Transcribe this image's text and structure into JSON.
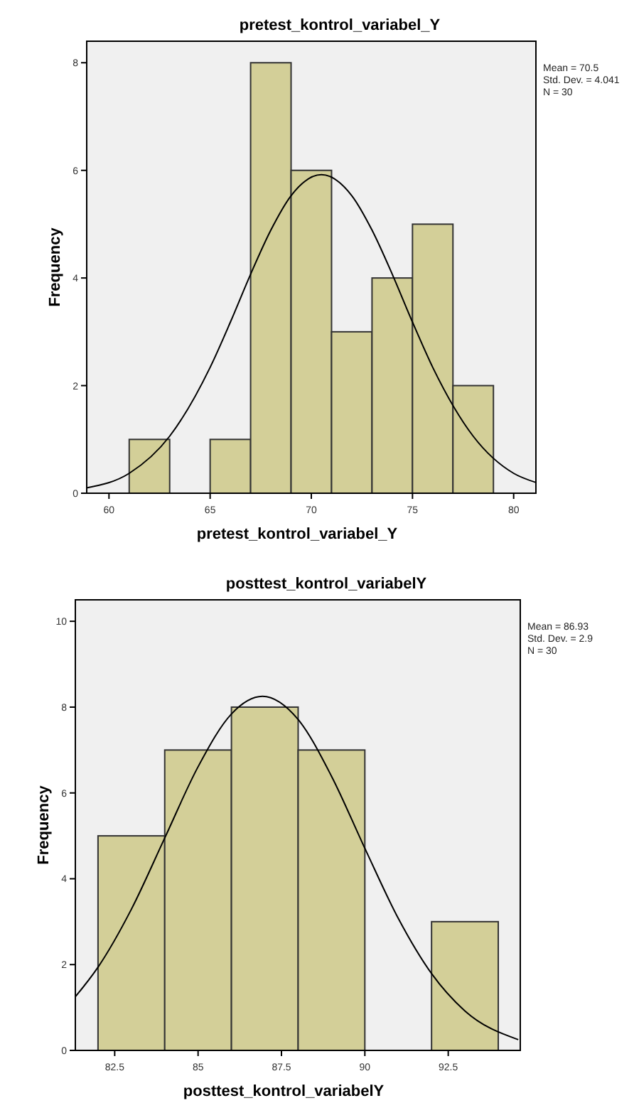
{
  "chart_data": [
    {
      "type": "histogram",
      "title": "pretest_kontrol_variabel_Y",
      "xlabel": "pretest_kontrol_variabel_Y",
      "ylabel": "Frequency",
      "bins": [
        61,
        63,
        65,
        67,
        69,
        71,
        73,
        75,
        77,
        79
      ],
      "values": [
        1,
        0,
        1,
        8,
        6,
        3,
        4,
        5,
        2
      ],
      "color": "#d3cf98",
      "xlim": [
        58.9,
        81.1
      ],
      "xticks": [
        60,
        65,
        70,
        75,
        80
      ],
      "ylim": [
        0,
        8.4
      ],
      "yticks": [
        0,
        2,
        4,
        6,
        8
      ],
      "grid": false,
      "annotations": [
        "Mean = 70.5",
        "Std. Dev. = 4.041",
        "N = 30"
      ],
      "series": [
        {
          "type": "line",
          "color": "#000000",
          "x": [
            58.9,
            61,
            63,
            65,
            66,
            67,
            68,
            69,
            70.5,
            72,
            73,
            74,
            75,
            76,
            78,
            80,
            81.1
          ],
          "values": [
            0.1,
            0.37,
            1.06,
            2.34,
            3.18,
            4.07,
            4.89,
            5.53,
            5.92,
            5.53,
            4.89,
            4.07,
            3.18,
            2.34,
            1.06,
            0.37,
            0.2
          ]
        }
      ]
    },
    {
      "type": "histogram",
      "title": "posttest_kontrol_variabelY",
      "xlabel": "posttest_kontrol_variabelY",
      "ylabel": "Frequency",
      "bins": [
        82,
        84,
        86,
        88,
        90,
        92,
        94
      ],
      "values": [
        5,
        7,
        8,
        7,
        0,
        3
      ],
      "color": "#d3cf98",
      "xlim": [
        81.32,
        94.66
      ],
      "xticks": [
        82.5,
        85,
        87.5,
        90,
        92.5
      ],
      "ylim": [
        0,
        10.5
      ],
      "yticks": [
        0,
        2,
        4,
        6,
        8,
        10
      ],
      "grid": false,
      "annotations": [
        "Mean = 86.93",
        "Std. Dev. = 2.9",
        "N = 30"
      ],
      "series": [
        {
          "type": "line",
          "color": "#000000",
          "x": [
            81.32,
            82,
            83,
            84,
            85,
            86,
            86.93,
            88,
            89,
            90,
            91,
            92,
            93,
            94.6
          ],
          "values": [
            1.25,
            1.94,
            3.29,
            4.95,
            6.61,
            7.84,
            8.25,
            7.71,
            6.39,
            4.71,
            3.08,
            1.79,
            0.92,
            0.25
          ]
        }
      ]
    }
  ]
}
